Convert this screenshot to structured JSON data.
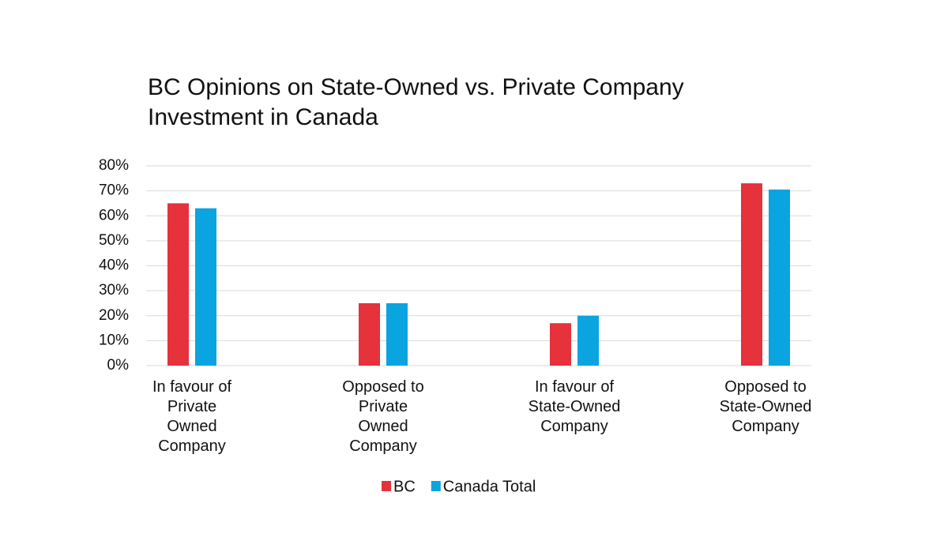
{
  "chart_data": {
    "type": "bar",
    "title": "BC Opinions on State-Owned vs. Private Company Investment in Canada",
    "categories": [
      "In favour of Private Owned Company",
      "Opposed to Private Owned Company",
      "In favour of State-Owned Company",
      "Opposed to State-Owned Company"
    ],
    "series": [
      {
        "name": "BC",
        "color": "#e5323b",
        "values": [
          65,
          25,
          17,
          73
        ]
      },
      {
        "name": "Canada Total",
        "color": "#0aa4e1",
        "values": [
          63,
          25,
          20,
          70.5
        ]
      }
    ],
    "ylim": [
      0,
      80
    ],
    "yticks": [
      {
        "value": 0,
        "label": "0%"
      },
      {
        "value": 10,
        "label": "10%"
      },
      {
        "value": 20,
        "label": "20%"
      },
      {
        "value": 30,
        "label": "30%"
      },
      {
        "value": 40,
        "label": "40%"
      },
      {
        "value": 50,
        "label": "50%"
      },
      {
        "value": 60,
        "label": "60%"
      },
      {
        "value": 70,
        "label": "70%"
      },
      {
        "value": 80,
        "label": "80%"
      }
    ],
    "grid": true,
    "legend": "bottom"
  }
}
